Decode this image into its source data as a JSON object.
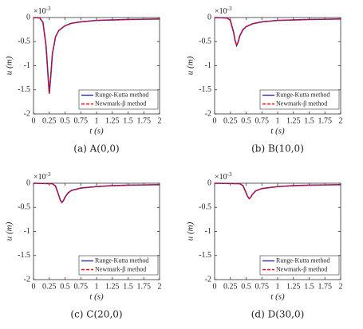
{
  "chart_data": [
    {
      "type": "line",
      "caption": "(a) A(0,0)",
      "x_label": "t (s)",
      "y_label": "u (m)",
      "y_multiplier": "×10",
      "y_exponent": "-3",
      "x": [
        0,
        0.1,
        0.15,
        0.2,
        0.225,
        0.25,
        0.275,
        0.3,
        0.35,
        0.4,
        0.5,
        0.6,
        0.75,
        1,
        1.25,
        1.5,
        1.75,
        2
      ],
      "series": [
        {
          "name": "Runge-Kutta method",
          "color": "#2b2bb0",
          "line_style": "solid",
          "values": [
            0,
            -0.01,
            -0.1,
            -0.6,
            -1.1,
            -1.58,
            -1.2,
            -0.75,
            -0.4,
            -0.27,
            -0.17,
            -0.12,
            -0.09,
            -0.06,
            -0.05,
            -0.04,
            -0.035,
            -0.03
          ]
        },
        {
          "name": "Newmark-β method",
          "color": "#ff0000",
          "line_style": "dashed",
          "values": [
            0,
            -0.01,
            -0.1,
            -0.6,
            -1.1,
            -1.58,
            -1.2,
            -0.75,
            -0.4,
            -0.27,
            -0.17,
            -0.12,
            -0.09,
            -0.06,
            -0.05,
            -0.04,
            -0.035,
            -0.03
          ]
        }
      ],
      "xlim": [
        0,
        2
      ],
      "xticks": [
        0,
        0.25,
        0.5,
        0.75,
        1,
        1.25,
        1.5,
        1.75,
        2
      ],
      "ylim": [
        -2,
        0
      ],
      "yticks": [
        0,
        -0.5,
        -1,
        -1.5,
        -2
      ],
      "legend": "lower right"
    },
    {
      "type": "line",
      "caption": "(b) B(10,0)",
      "x_label": "t (s)",
      "y_label": "u (m)",
      "y_multiplier": "×10",
      "y_exponent": "-3",
      "x": [
        0,
        0.2,
        0.25,
        0.3,
        0.325,
        0.35,
        0.375,
        0.4,
        0.45,
        0.5,
        0.6,
        0.75,
        1,
        1.25,
        1.5,
        1.75,
        2
      ],
      "series": [
        {
          "name": "Runge-Kutta method",
          "color": "#2b2bb0",
          "line_style": "solid",
          "values": [
            0,
            -0.01,
            -0.06,
            -0.3,
            -0.48,
            -0.58,
            -0.5,
            -0.38,
            -0.25,
            -0.19,
            -0.13,
            -0.09,
            -0.06,
            -0.05,
            -0.04,
            -0.035,
            -0.03
          ]
        },
        {
          "name": "Newmark-β method",
          "color": "#ff0000",
          "line_style": "dashed",
          "values": [
            0,
            -0.01,
            -0.06,
            -0.3,
            -0.48,
            -0.58,
            -0.5,
            -0.38,
            -0.25,
            -0.19,
            -0.13,
            -0.09,
            -0.06,
            -0.05,
            -0.04,
            -0.035,
            -0.03
          ]
        }
      ],
      "xlim": [
        0,
        2
      ],
      "xticks": [
        0,
        0.25,
        0.5,
        0.75,
        1,
        1.25,
        1.5,
        1.75,
        2
      ],
      "ylim": [
        -2,
        0
      ],
      "yticks": [
        0,
        -0.5,
        -1,
        -1.5,
        -2
      ],
      "legend": "lower right"
    },
    {
      "type": "line",
      "caption": "(c) C(20,0)",
      "x_label": "t (s)",
      "y_label": "u (m)",
      "y_multiplier": "×10",
      "y_exponent": "-3",
      "x": [
        0,
        0.3,
        0.35,
        0.4,
        0.425,
        0.45,
        0.475,
        0.5,
        0.55,
        0.6,
        0.75,
        1,
        1.25,
        1.5,
        1.75,
        2
      ],
      "series": [
        {
          "name": "Runge-Kutta method",
          "color": "#2b2bb0",
          "line_style": "solid",
          "values": [
            0,
            -0.01,
            -0.06,
            -0.25,
            -0.35,
            -0.4,
            -0.36,
            -0.29,
            -0.2,
            -0.15,
            -0.1,
            -0.07,
            -0.05,
            -0.04,
            -0.035,
            -0.03
          ]
        },
        {
          "name": "Newmark-β method",
          "color": "#ff0000",
          "line_style": "dashed",
          "values": [
            0,
            -0.01,
            -0.06,
            -0.25,
            -0.35,
            -0.4,
            -0.36,
            -0.29,
            -0.2,
            -0.15,
            -0.1,
            -0.07,
            -0.05,
            -0.04,
            -0.035,
            -0.03
          ]
        }
      ],
      "xlim": [
        0,
        2
      ],
      "xticks": [
        0,
        0.25,
        0.5,
        0.75,
        1,
        1.25,
        1.5,
        1.75,
        2
      ],
      "ylim": [
        -2,
        0
      ],
      "yticks": [
        0,
        -0.5,
        -1,
        -1.5,
        -2
      ],
      "legend": "lower right"
    },
    {
      "type": "line",
      "caption": "(d) D(30,0)",
      "x_label": "t (s)",
      "y_label": "u (m)",
      "y_multiplier": "×10",
      "y_exponent": "-3",
      "x": [
        0,
        0.4,
        0.45,
        0.5,
        0.525,
        0.55,
        0.575,
        0.6,
        0.65,
        0.75,
        1,
        1.25,
        1.5,
        1.75,
        2
      ],
      "series": [
        {
          "name": "Runge-Kutta method",
          "color": "#2b2bb0",
          "line_style": "solid",
          "values": [
            0,
            -0.01,
            -0.05,
            -0.2,
            -0.28,
            -0.32,
            -0.29,
            -0.23,
            -0.16,
            -0.11,
            -0.07,
            -0.05,
            -0.04,
            -0.035,
            -0.03
          ]
        },
        {
          "name": "Newmark-β method",
          "color": "#ff0000",
          "line_style": "dashed",
          "values": [
            0,
            -0.01,
            -0.05,
            -0.2,
            -0.28,
            -0.32,
            -0.29,
            -0.23,
            -0.16,
            -0.11,
            -0.07,
            -0.05,
            -0.04,
            -0.035,
            -0.03
          ]
        }
      ],
      "xlim": [
        0,
        2
      ],
      "xticks": [
        0,
        0.25,
        0.5,
        0.75,
        1,
        1.25,
        1.5,
        1.75,
        2
      ],
      "ylim": [
        -2,
        0
      ],
      "yticks": [
        0,
        -0.5,
        -1,
        -1.5,
        -2
      ],
      "legend": "lower right"
    }
  ]
}
